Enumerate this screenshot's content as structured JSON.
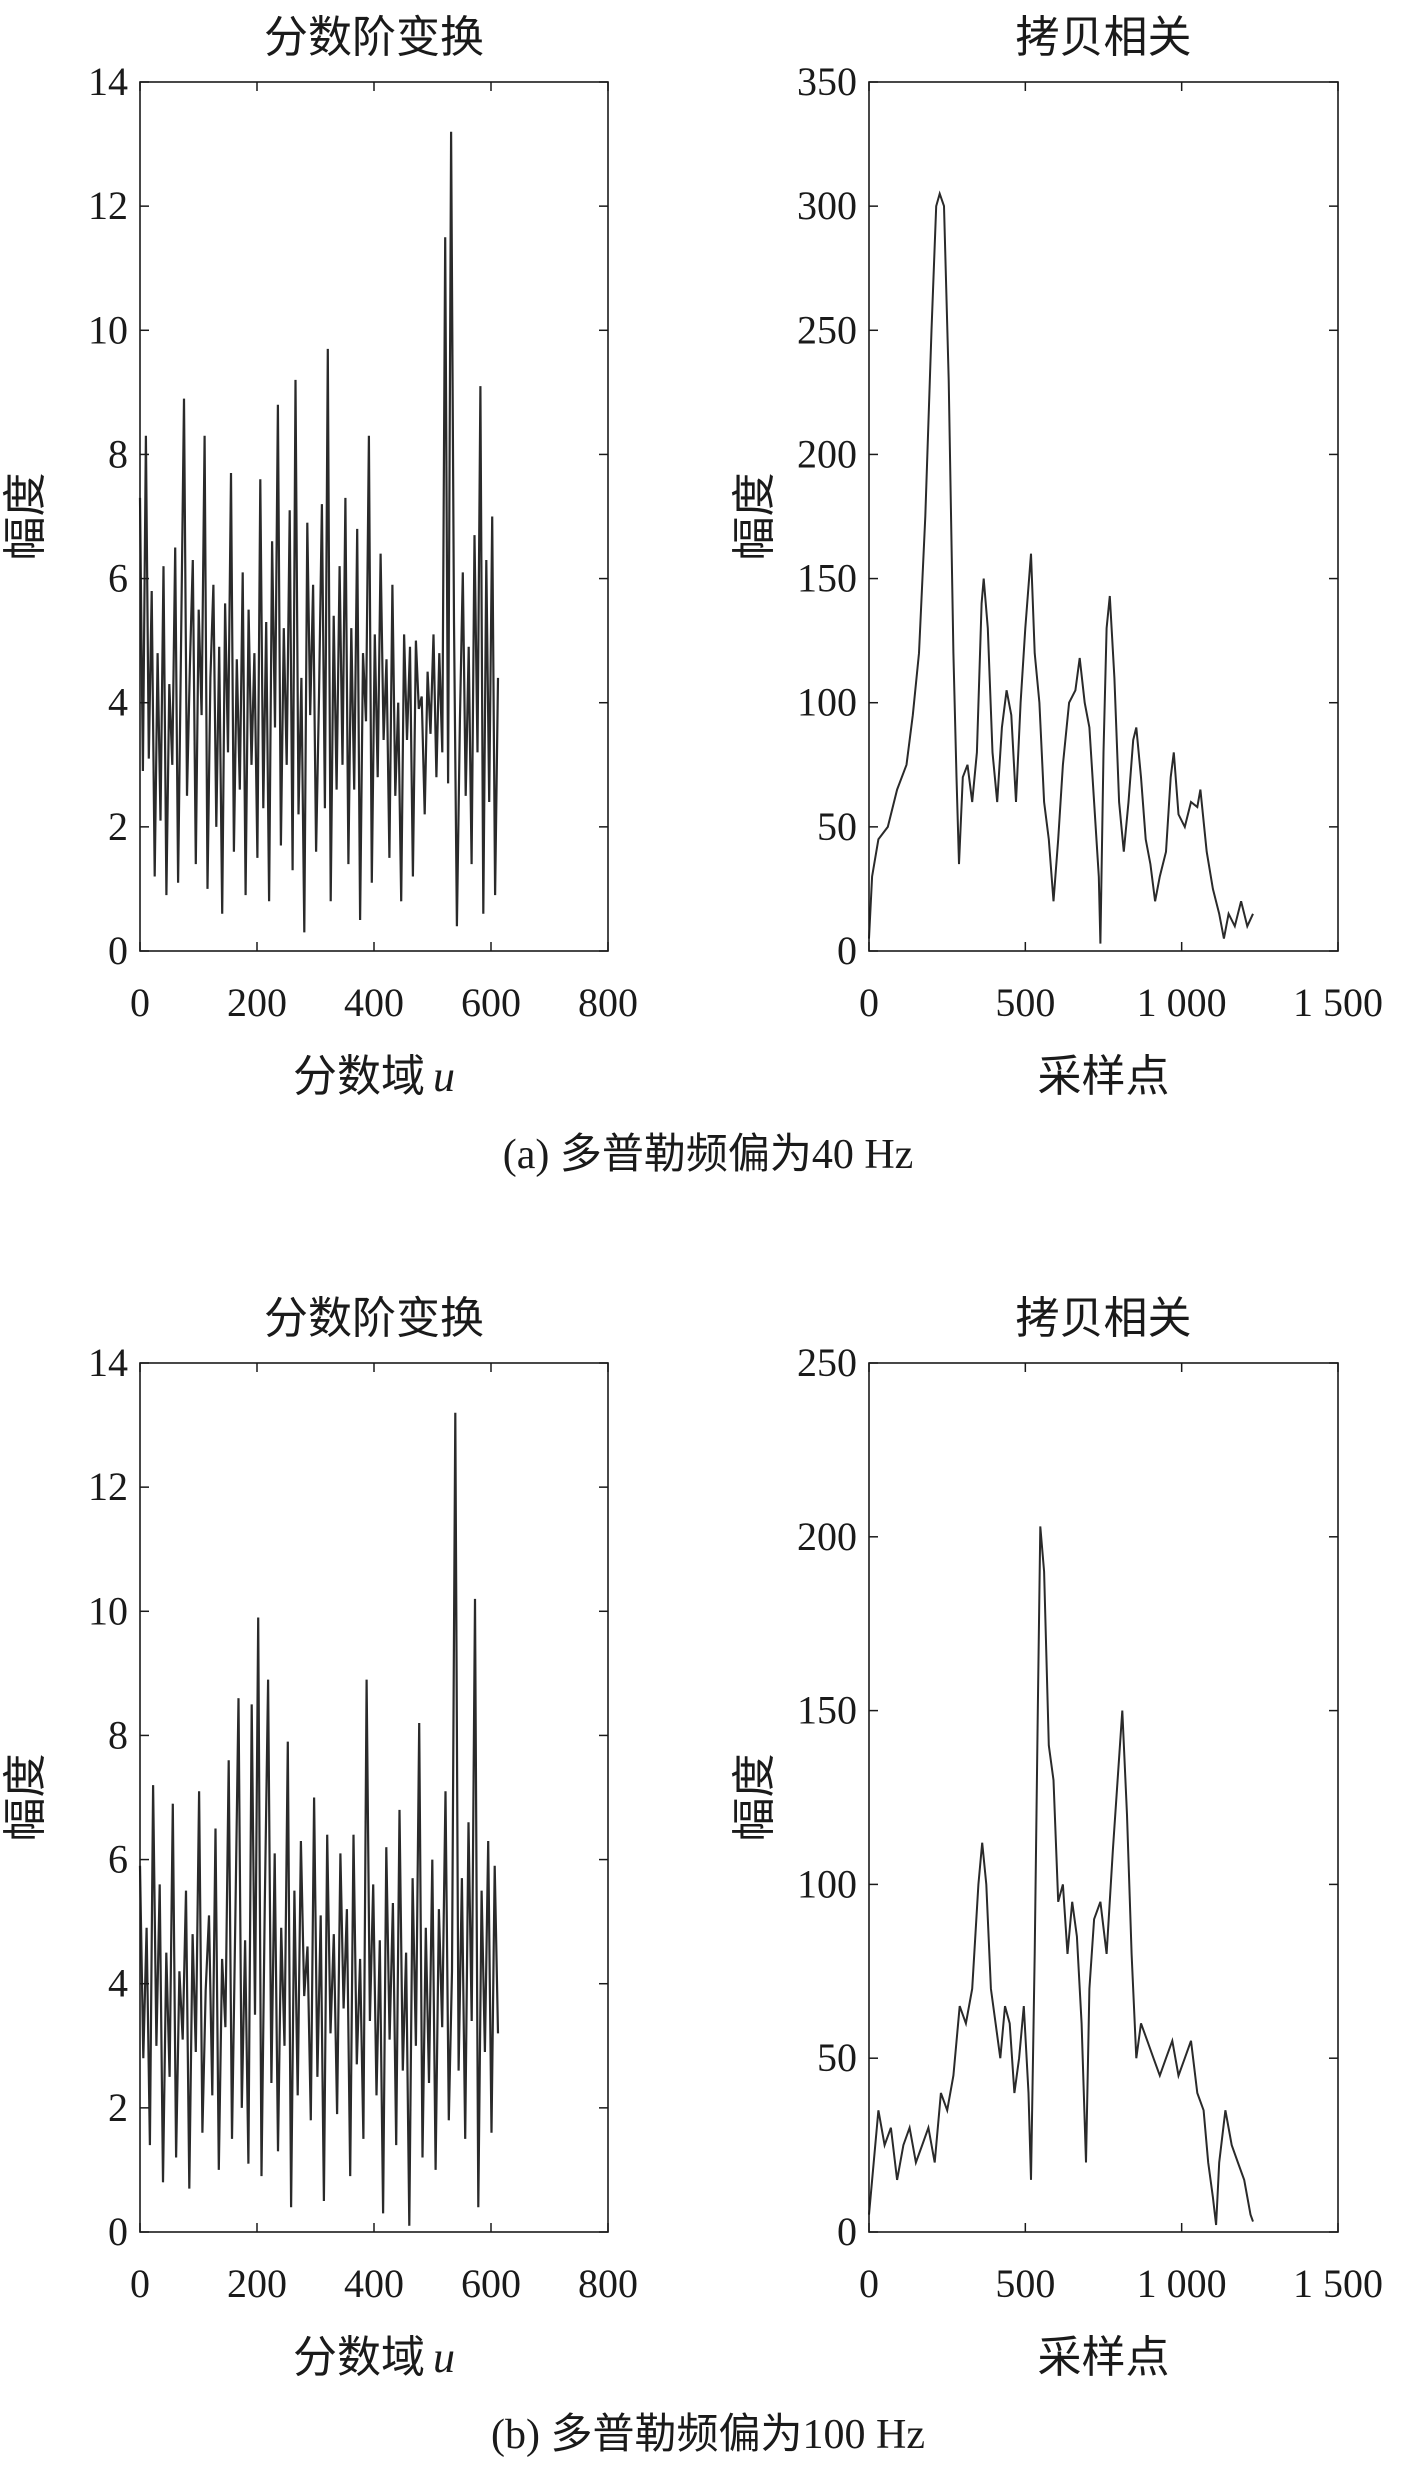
{
  "captions": [
    "(a) 多普勒频偏为40 Hz",
    "(b) 多普勒频偏为100 Hz"
  ],
  "colors": {
    "line": "#2a2a2a",
    "axis": "#1a1a1a"
  },
  "chart_data": [
    {
      "type": "line",
      "panel": "a-left",
      "title": "分数阶变换",
      "xlabel": "分数域",
      "xlabel_var": "u",
      "ylabel": "幅度",
      "xlim": [
        0,
        800
      ],
      "ylim": [
        0,
        14
      ],
      "xticks": [
        0,
        200,
        400,
        600,
        800
      ],
      "xtick_labels": [
        "0",
        "200",
        "400",
        "600",
        "800"
      ],
      "yticks": [
        0,
        2,
        4,
        6,
        8,
        10,
        12,
        14
      ],
      "ytick_labels": [
        "0",
        "2",
        "4",
        "6",
        "8",
        "10",
        "12",
        "14"
      ],
      "x_range": [
        0,
        612
      ],
      "values": [
        7.3,
        2.9,
        8.3,
        3.1,
        5.8,
        1.2,
        4.8,
        2.1,
        6.2,
        0.9,
        4.3,
        3.0,
        6.5,
        1.1,
        5.0,
        8.9,
        2.5,
        4.6,
        6.3,
        1.4,
        5.5,
        3.8,
        8.3,
        1.0,
        4.4,
        5.9,
        2.0,
        4.9,
        0.6,
        5.6,
        3.2,
        7.7,
        1.6,
        4.7,
        2.6,
        6.1,
        0.9,
        5.5,
        3.0,
        4.8,
        1.5,
        7.6,
        2.3,
        5.3,
        0.8,
        6.6,
        3.6,
        8.8,
        1.7,
        5.2,
        3.0,
        7.1,
        1.3,
        9.2,
        2.2,
        4.4,
        0.3,
        6.9,
        3.8,
        5.9,
        1.6,
        4.1,
        7.2,
        2.3,
        9.7,
        0.8,
        5.4,
        2.6,
        6.2,
        3.0,
        7.3,
        1.4,
        5.2,
        2.6,
        6.8,
        0.5,
        4.8,
        3.7,
        8.3,
        1.1,
        5.1,
        2.8,
        6.4,
        3.4,
        4.7,
        1.5,
        5.9,
        2.5,
        4.0,
        0.8,
        5.1,
        3.4,
        4.9,
        1.2,
        5.0,
        3.9,
        4.1,
        2.2,
        4.5,
        3.5,
        5.1,
        2.8,
        4.8,
        3.2,
        11.5,
        2.7,
        13.2,
        5.3,
        0.4,
        3.7,
        6.1,
        2.5,
        4.9,
        1.4,
        6.7,
        3.2,
        9.1,
        0.6,
        6.3,
        2.4,
        7.0,
        0.9,
        4.4
      ]
    },
    {
      "type": "line",
      "panel": "a-right",
      "title": "拷贝相关",
      "xlabel": "采样点",
      "ylabel": "幅度",
      "xlim": [
        0,
        1500
      ],
      "ylim": [
        0,
        350
      ],
      "xticks": [
        0,
        500,
        1000,
        1500
      ],
      "xtick_labels": [
        "0",
        "500",
        "1 000",
        "1 500"
      ],
      "yticks": [
        0,
        50,
        100,
        150,
        200,
        250,
        300,
        350
      ],
      "ytick_labels": [
        "0",
        "50",
        "100",
        "150",
        "200",
        "250",
        "300",
        "350"
      ],
      "points": [
        [
          0,
          5
        ],
        [
          10,
          30
        ],
        [
          30,
          45
        ],
        [
          60,
          50
        ],
        [
          90,
          65
        ],
        [
          120,
          75
        ],
        [
          140,
          95
        ],
        [
          160,
          120
        ],
        [
          180,
          175
        ],
        [
          200,
          250
        ],
        [
          215,
          300
        ],
        [
          226,
          305
        ],
        [
          240,
          300
        ],
        [
          255,
          230
        ],
        [
          270,
          120
        ],
        [
          280,
          70
        ],
        [
          288,
          35
        ],
        [
          300,
          70
        ],
        [
          315,
          75
        ],
        [
          330,
          60
        ],
        [
          345,
          80
        ],
        [
          360,
          140
        ],
        [
          367,
          150
        ],
        [
          380,
          130
        ],
        [
          395,
          80
        ],
        [
          410,
          60
        ],
        [
          425,
          90
        ],
        [
          440,
          105
        ],
        [
          455,
          95
        ],
        [
          470,
          60
        ],
        [
          485,
          100
        ],
        [
          500,
          130
        ],
        [
          518,
          160
        ],
        [
          530,
          120
        ],
        [
          545,
          100
        ],
        [
          560,
          60
        ],
        [
          575,
          45
        ],
        [
          590,
          20
        ],
        [
          605,
          45
        ],
        [
          620,
          75
        ],
        [
          640,
          100
        ],
        [
          660,
          105
        ],
        [
          674,
          118
        ],
        [
          690,
          100
        ],
        [
          705,
          90
        ],
        [
          720,
          60
        ],
        [
          735,
          30
        ],
        [
          740,
          3
        ],
        [
          750,
          80
        ],
        [
          760,
          130
        ],
        [
          770,
          143
        ],
        [
          785,
          110
        ],
        [
          800,
          60
        ],
        [
          815,
          40
        ],
        [
          830,
          60
        ],
        [
          845,
          85
        ],
        [
          855,
          90
        ],
        [
          870,
          70
        ],
        [
          885,
          45
        ],
        [
          900,
          35
        ],
        [
          915,
          20
        ],
        [
          930,
          30
        ],
        [
          950,
          40
        ],
        [
          965,
          70
        ],
        [
          975,
          80
        ],
        [
          990,
          55
        ],
        [
          1010,
          50
        ],
        [
          1030,
          60
        ],
        [
          1050,
          58
        ],
        [
          1060,
          65
        ],
        [
          1080,
          40
        ],
        [
          1100,
          25
        ],
        [
          1120,
          15
        ],
        [
          1135,
          5
        ],
        [
          1150,
          15
        ],
        [
          1170,
          10
        ],
        [
          1190,
          20
        ],
        [
          1210,
          10
        ],
        [
          1228,
          15
        ]
      ]
    },
    {
      "type": "line",
      "panel": "b-left",
      "title": "分数阶变换",
      "xlabel": "分数域",
      "xlabel_var": "u",
      "ylabel": "幅度",
      "xlim": [
        0,
        800
      ],
      "ylim": [
        0,
        14
      ],
      "xticks": [
        0,
        200,
        400,
        600,
        800
      ],
      "xtick_labels": [
        "0",
        "200",
        "400",
        "600",
        "800"
      ],
      "yticks": [
        0,
        2,
        4,
        6,
        8,
        10,
        12,
        14
      ],
      "ytick_labels": [
        "0",
        "2",
        "4",
        "6",
        "8",
        "10",
        "12",
        "14"
      ],
      "x_range": [
        0,
        612
      ],
      "values": [
        5.9,
        2.8,
        4.9,
        1.4,
        7.2,
        3.0,
        5.6,
        0.8,
        4.5,
        2.5,
        6.9,
        1.2,
        4.2,
        3.1,
        5.5,
        0.7,
        4.8,
        2.9,
        7.1,
        1.6,
        3.9,
        5.1,
        2.2,
        6.5,
        1.0,
        4.4,
        3.3,
        7.6,
        1.5,
        5.0,
        8.6,
        2.0,
        4.7,
        1.1,
        8.5,
        3.5,
        9.9,
        0.9,
        5.3,
        8.9,
        2.4,
        6.1,
        1.3,
        4.9,
        3.0,
        7.9,
        0.4,
        5.5,
        2.2,
        6.3,
        3.8,
        4.6,
        1.8,
        7.0,
        2.5,
        5.1,
        0.5,
        6.4,
        3.2,
        4.8,
        1.9,
        6.1,
        3.6,
        5.2,
        0.9,
        6.4,
        2.7,
        4.4,
        1.5,
        8.9,
        3.4,
        5.6,
        2.2,
        4.7,
        0.3,
        6.2,
        3.1,
        5.3,
        1.4,
        6.8,
        2.6,
        4.5,
        0.1,
        5.7,
        3.0,
        8.2,
        1.2,
        4.9,
        2.4,
        6.0,
        1.0,
        5.2,
        3.3,
        7.1,
        1.8,
        4.2,
        13.2,
        2.6,
        5.7,
        1.5,
        6.6,
        3.4,
        10.2,
        0.4,
        5.5,
        2.9,
        6.3,
        1.6,
        5.9,
        3.2
      ]
    },
    {
      "type": "line",
      "panel": "b-right",
      "title": "拷贝相关",
      "xlabel": "采样点",
      "ylabel": "幅度",
      "xlim": [
        0,
        1500
      ],
      "ylim": [
        0,
        250
      ],
      "xticks": [
        0,
        500,
        1000,
        1500
      ],
      "xtick_labels": [
        "0",
        "500",
        "1 000",
        "1 500"
      ],
      "yticks": [
        0,
        50,
        100,
        150,
        200,
        250
      ],
      "ytick_labels": [
        "0",
        "50",
        "100",
        "150",
        "200",
        "250"
      ],
      "points": [
        [
          0,
          5
        ],
        [
          15,
          20
        ],
        [
          30,
          35
        ],
        [
          50,
          25
        ],
        [
          70,
          30
        ],
        [
          90,
          15
        ],
        [
          110,
          25
        ],
        [
          130,
          30
        ],
        [
          150,
          20
        ],
        [
          170,
          25
        ],
        [
          190,
          30
        ],
        [
          210,
          20
        ],
        [
          230,
          40
        ],
        [
          250,
          35
        ],
        [
          270,
          45
        ],
        [
          290,
          65
        ],
        [
          310,
          60
        ],
        [
          330,
          70
        ],
        [
          350,
          100
        ],
        [
          362,
          112
        ],
        [
          375,
          100
        ],
        [
          390,
          70
        ],
        [
          405,
          60
        ],
        [
          420,
          50
        ],
        [
          435,
          65
        ],
        [
          450,
          60
        ],
        [
          465,
          40
        ],
        [
          480,
          50
        ],
        [
          495,
          65
        ],
        [
          510,
          40
        ],
        [
          518,
          15
        ],
        [
          530,
          80
        ],
        [
          540,
          150
        ],
        [
          548,
          203
        ],
        [
          560,
          190
        ],
        [
          575,
          140
        ],
        [
          590,
          130
        ],
        [
          605,
          95
        ],
        [
          620,
          100
        ],
        [
          635,
          80
        ],
        [
          650,
          95
        ],
        [
          665,
          85
        ],
        [
          680,
          60
        ],
        [
          694,
          20
        ],
        [
          705,
          70
        ],
        [
          720,
          90
        ],
        [
          740,
          95
        ],
        [
          760,
          80
        ],
        [
          780,
          110
        ],
        [
          795,
          130
        ],
        [
          810,
          150
        ],
        [
          825,
          120
        ],
        [
          840,
          80
        ],
        [
          855,
          50
        ],
        [
          870,
          60
        ],
        [
          890,
          55
        ],
        [
          910,
          50
        ],
        [
          930,
          45
        ],
        [
          950,
          50
        ],
        [
          970,
          55
        ],
        [
          990,
          45
        ],
        [
          1010,
          50
        ],
        [
          1030,
          55
        ],
        [
          1050,
          40
        ],
        [
          1070,
          35
        ],
        [
          1085,
          20
        ],
        [
          1100,
          10
        ],
        [
          1110,
          2
        ],
        [
          1120,
          20
        ],
        [
          1140,
          35
        ],
        [
          1160,
          25
        ],
        [
          1180,
          20
        ],
        [
          1200,
          15
        ],
        [
          1220,
          5
        ],
        [
          1228,
          3
        ]
      ]
    }
  ]
}
